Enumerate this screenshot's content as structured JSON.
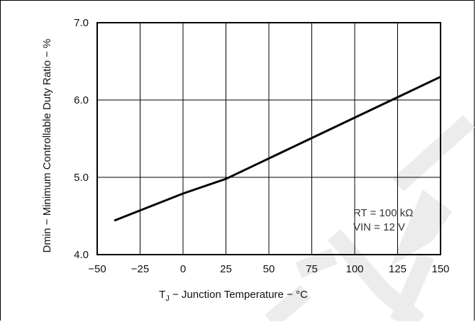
{
  "chart_data": {
    "type": "line",
    "xlabel_prefix": "T",
    "xlabel_subscript": "J",
    "xlabel_rest": " − Junction Temperature −  °C",
    "ylabel": "Dmin − Minimum Controllable Duty Ratio − %",
    "xlim": [
      -50,
      150
    ],
    "ylim": [
      4.0,
      7.0
    ],
    "xticks": [
      -50,
      -25,
      0,
      25,
      50,
      75,
      100,
      125,
      150
    ],
    "yticks": [
      4.0,
      5.0,
      6.0,
      7.0
    ],
    "xtick_labels": [
      "−50",
      "−25",
      "0",
      "25",
      "50",
      "75",
      "100",
      "125",
      "150"
    ],
    "ytick_labels": [
      "4.0",
      "5.0",
      "6.0",
      "7.0"
    ],
    "grid": true,
    "series": [
      {
        "x": [
          -40,
          0,
          25,
          150
        ],
        "y": [
          4.44,
          4.79,
          4.98,
          6.3
        ]
      }
    ],
    "annotations": [
      "RT = 100 kΩ",
      "VIN = 12 V"
    ]
  }
}
